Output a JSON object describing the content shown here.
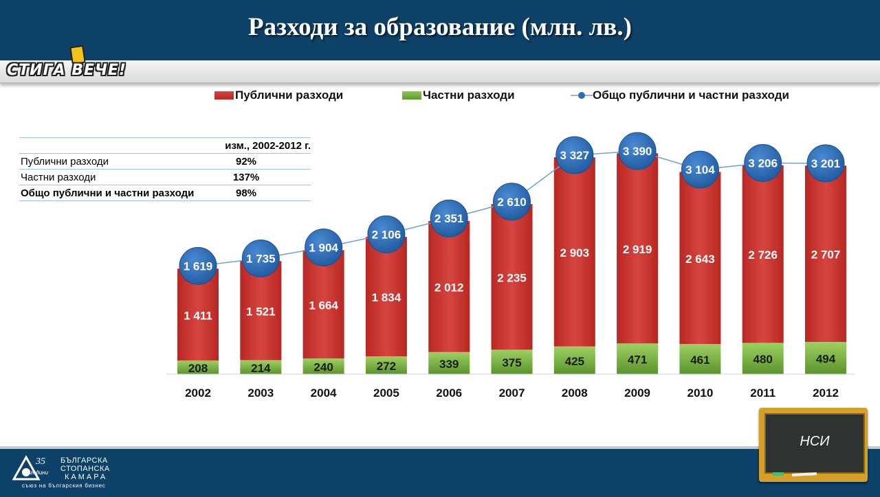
{
  "title": "Разходи за образование (млн. лв.)",
  "logo": {
    "text": "СТИГА ВЕЧЕ!"
  },
  "legend": {
    "public": "Публични разходи",
    "private": "Частни разходи",
    "total": "Общо публични и частни разходи"
  },
  "table": {
    "header": "изм., 2002-2012 г.",
    "rows": [
      {
        "label": "Публични разходи",
        "value": "92%"
      },
      {
        "label": "Частни разходи",
        "value": "137%"
      },
      {
        "label": "Общо публични и частни разходи",
        "value": "98%"
      }
    ]
  },
  "source": "НСИ",
  "footer": {
    "org_line1": "БЪЛГАРСКА",
    "org_line2": "СТОПАНСКА",
    "org_line3": "КАМАРА",
    "slogan": "съюз на българския бизнес",
    "anniversary": "години"
  },
  "colors": {
    "header": "#0d4168",
    "public": "#c8312e",
    "private": "#6aa637",
    "total": "#2e6db4"
  },
  "chart_data": {
    "type": "bar",
    "stacked": true,
    "categories": [
      "2002",
      "2003",
      "2004",
      "2005",
      "2006",
      "2007",
      "2008",
      "2009",
      "2010",
      "2011",
      "2012"
    ],
    "series": [
      {
        "name": "Частни разходи",
        "type": "bar",
        "values": [
          208,
          214,
          240,
          272,
          339,
          375,
          425,
          471,
          461,
          480,
          494
        ]
      },
      {
        "name": "Публични разходи",
        "type": "bar",
        "values": [
          1411,
          1521,
          1664,
          1834,
          2012,
          2235,
          2903,
          2919,
          2643,
          2726,
          2707
        ]
      },
      {
        "name": "Общо публични и частни разходи",
        "type": "line",
        "values": [
          1619,
          1735,
          1904,
          2106,
          2351,
          2610,
          3327,
          3390,
          3104,
          3206,
          3201
        ]
      }
    ],
    "labels": {
      "private": [
        "208",
        "214",
        "240",
        "272",
        "339",
        "375",
        "425",
        "471",
        "461",
        "480",
        "494"
      ],
      "public": [
        "1 411",
        "1 521",
        "1 664",
        "1 834",
        "2 012",
        "2 235",
        "2 903",
        "2 919",
        "2 643",
        "2 726",
        "2 707"
      ],
      "total": [
        "1 619",
        "1 735",
        "1 904",
        "2 106",
        "2 351",
        "2 610",
        "3 327",
        "3 390",
        "3 104",
        "3 206",
        "3 201"
      ]
    },
    "legend_position": "top",
    "grid": false
  }
}
